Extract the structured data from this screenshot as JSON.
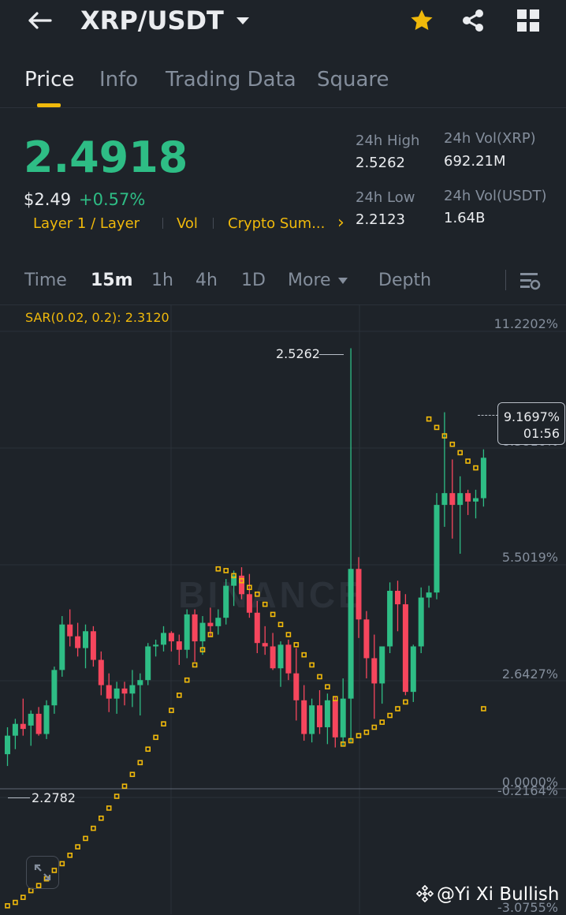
{
  "header": {
    "pair": "XRP/USDT",
    "back_icon": "arrow-left-icon",
    "dropdown_icon": "caret-down-icon",
    "star_icon": "star-icon",
    "share_icon": "share-icon",
    "grid_icon": "grid-icon"
  },
  "tabs": [
    {
      "label": "Price",
      "active": true
    },
    {
      "label": "Info"
    },
    {
      "label": "Trading Data"
    },
    {
      "label": "Square"
    }
  ],
  "price": {
    "last": "2.4918",
    "usd": "$2.49",
    "change": "+0.57%"
  },
  "tags": [
    "Layer 1 / Layer",
    "Vol",
    "Crypto Sum...",
    "›"
  ],
  "stats": {
    "high_label": "24h High",
    "high_value": "2.5262",
    "low_label": "24h Low",
    "low_value": "2.2123",
    "volxrp_label": "24h Vol(XRP)",
    "volxrp_value": "692.21M",
    "volusdt_label": "24h Vol(USDT)",
    "volusdt_value": "1.64B"
  },
  "timeframes": {
    "time": "Time",
    "m15": "15m",
    "h1": "1h",
    "h4": "4h",
    "d1": "1D",
    "more": "More",
    "depth": "Depth"
  },
  "indicator": "SAR(0.02, 0.2): 2.3120",
  "axis": [
    "11.2202%",
    "8.3816%",
    "5.5019%",
    "2.6427%",
    "0.0000%",
    "-0.2164%",
    "-3.0755%"
  ],
  "current_tag": {
    "pct": "9.1697%",
    "countdown": "01:56"
  },
  "annotations": {
    "high": "2.5262",
    "low": "2.2782"
  },
  "watermark": "BINANCE",
  "credit": "@Yi Xi Bullish",
  "colors": {
    "up": "#2ebd85",
    "down": "#f6465d",
    "accent": "#f0b90b",
    "bg": "#1e2329"
  },
  "chart_data": {
    "type": "candlestick",
    "candles": [
      {
        "o": 2.285,
        "h": 2.301,
        "l": 2.278,
        "c": 2.296
      },
      {
        "o": 2.296,
        "h": 2.306,
        "l": 2.288,
        "c": 2.303
      },
      {
        "o": 2.303,
        "h": 2.318,
        "l": 2.296,
        "c": 2.3
      },
      {
        "o": 2.302,
        "h": 2.311,
        "l": 2.29,
        "c": 2.309
      },
      {
        "o": 2.309,
        "h": 2.313,
        "l": 2.296,
        "c": 2.297
      },
      {
        "o": 2.297,
        "h": 2.317,
        "l": 2.294,
        "c": 2.314
      },
      {
        "o": 2.314,
        "h": 2.337,
        "l": 2.309,
        "c": 2.335
      },
      {
        "o": 2.335,
        "h": 2.367,
        "l": 2.331,
        "c": 2.362
      },
      {
        "o": 2.362,
        "h": 2.371,
        "l": 2.349,
        "c": 2.355
      },
      {
        "o": 2.355,
        "h": 2.363,
        "l": 2.343,
        "c": 2.348
      },
      {
        "o": 2.348,
        "h": 2.362,
        "l": 2.336,
        "c": 2.358
      },
      {
        "o": 2.358,
        "h": 2.361,
        "l": 2.337,
        "c": 2.341
      },
      {
        "o": 2.341,
        "h": 2.346,
        "l": 2.32,
        "c": 2.326
      },
      {
        "o": 2.326,
        "h": 2.333,
        "l": 2.31,
        "c": 2.318
      },
      {
        "o": 2.318,
        "h": 2.328,
        "l": 2.309,
        "c": 2.324
      },
      {
        "o": 2.324,
        "h": 2.328,
        "l": 2.314,
        "c": 2.321
      },
      {
        "o": 2.321,
        "h": 2.335,
        "l": 2.313,
        "c": 2.326
      },
      {
        "o": 2.326,
        "h": 2.333,
        "l": 2.308,
        "c": 2.329
      },
      {
        "o": 2.329,
        "h": 2.351,
        "l": 2.326,
        "c": 2.349
      },
      {
        "o": 2.349,
        "h": 2.353,
        "l": 2.343,
        "c": 2.35
      },
      {
        "o": 2.35,
        "h": 2.361,
        "l": 2.346,
        "c": 2.357
      },
      {
        "o": 2.357,
        "h": 2.358,
        "l": 2.346,
        "c": 2.352
      },
      {
        "o": 2.352,
        "h": 2.356,
        "l": 2.338,
        "c": 2.347
      },
      {
        "o": 2.347,
        "h": 2.371,
        "l": 2.342,
        "c": 2.368
      },
      {
        "o": 2.368,
        "h": 2.371,
        "l": 2.34,
        "c": 2.352
      },
      {
        "o": 2.352,
        "h": 2.367,
        "l": 2.344,
        "c": 2.363
      },
      {
        "o": 2.363,
        "h": 2.372,
        "l": 2.355,
        "c": 2.361
      },
      {
        "o": 2.361,
        "h": 2.371,
        "l": 2.356,
        "c": 2.366
      },
      {
        "o": 2.366,
        "h": 2.389,
        "l": 2.362,
        "c": 2.385
      },
      {
        "o": 2.385,
        "h": 2.394,
        "l": 2.373,
        "c": 2.391
      },
      {
        "o": 2.391,
        "h": 2.396,
        "l": 2.377,
        "c": 2.38
      },
      {
        "o": 2.38,
        "h": 2.392,
        "l": 2.366,
        "c": 2.369
      },
      {
        "o": 2.369,
        "h": 2.376,
        "l": 2.345,
        "c": 2.351
      },
      {
        "o": 2.351,
        "h": 2.361,
        "l": 2.344,
        "c": 2.349
      },
      {
        "o": 2.349,
        "h": 2.357,
        "l": 2.335,
        "c": 2.336
      },
      {
        "o": 2.336,
        "h": 2.352,
        "l": 2.325,
        "c": 2.35
      },
      {
        "o": 2.35,
        "h": 2.353,
        "l": 2.329,
        "c": 2.333
      },
      {
        "o": 2.333,
        "h": 2.348,
        "l": 2.305,
        "c": 2.317
      },
      {
        "o": 2.317,
        "h": 2.326,
        "l": 2.293,
        "c": 2.297
      },
      {
        "o": 2.297,
        "h": 2.318,
        "l": 2.292,
        "c": 2.314
      },
      {
        "o": 2.314,
        "h": 2.323,
        "l": 2.297,
        "c": 2.301
      },
      {
        "o": 2.301,
        "h": 2.321,
        "l": 2.291,
        "c": 2.317
      },
      {
        "o": 2.317,
        "h": 2.319,
        "l": 2.289,
        "c": 2.295
      },
      {
        "o": 2.295,
        "h": 2.33,
        "l": 2.29,
        "c": 2.318
      },
      {
        "o": 2.318,
        "h": 2.526,
        "l": 2.292,
        "c": 2.395
      },
      {
        "o": 2.395,
        "h": 2.402,
        "l": 2.354,
        "c": 2.365
      },
      {
        "o": 2.365,
        "h": 2.37,
        "l": 2.33,
        "c": 2.342
      },
      {
        "o": 2.342,
        "h": 2.356,
        "l": 2.306,
        "c": 2.327
      },
      {
        "o": 2.327,
        "h": 2.348,
        "l": 2.315,
        "c": 2.349
      },
      {
        "o": 2.349,
        "h": 2.387,
        "l": 2.345,
        "c": 2.382
      },
      {
        "o": 2.382,
        "h": 2.388,
        "l": 2.358,
        "c": 2.374
      },
      {
        "o": 2.374,
        "h": 2.38,
        "l": 2.32,
        "c": 2.322
      },
      {
        "o": 2.322,
        "h": 2.35,
        "l": 2.316,
        "c": 2.349
      },
      {
        "o": 2.349,
        "h": 2.384,
        "l": 2.345,
        "c": 2.378
      },
      {
        "o": 2.378,
        "h": 2.385,
        "l": 2.372,
        "c": 2.381
      },
      {
        "o": 2.381,
        "h": 2.44,
        "l": 2.377,
        "c": 2.433
      },
      {
        "o": 2.433,
        "h": 2.488,
        "l": 2.42,
        "c": 2.44
      },
      {
        "o": 2.44,
        "h": 2.46,
        "l": 2.413,
        "c": 2.433
      },
      {
        "o": 2.433,
        "h": 2.45,
        "l": 2.404,
        "c": 2.44
      },
      {
        "o": 2.44,
        "h": 2.442,
        "l": 2.427,
        "c": 2.435
      },
      {
        "o": 2.435,
        "h": 2.442,
        "l": 2.425,
        "c": 2.437
      },
      {
        "o": 2.437,
        "h": 2.466,
        "l": 2.432,
        "c": 2.461
      }
    ],
    "sar": [
      2.195,
      2.197,
      2.2,
      2.204,
      2.207,
      2.211,
      2.216,
      2.22,
      2.225,
      2.23,
      2.235,
      2.241,
      2.247,
      2.253,
      2.26,
      2.266,
      2.273,
      2.28,
      2.288,
      2.295,
      2.303,
      2.311,
      2.32,
      2.329,
      2.338,
      2.347,
      2.356,
      2.395,
      2.394,
      2.391,
      2.388,
      2.384,
      2.38,
      2.374,
      2.368,
      2.362,
      2.356,
      2.35,
      2.344,
      2.338,
      2.331,
      2.325,
      2.318,
      2.291,
      2.293,
      2.296,
      2.298,
      2.301,
      2.304,
      2.308,
      2.312,
      2.316,
      null,
      null,
      2.484,
      2.479,
      2.474,
      2.469,
      2.464,
      2.459,
      2.455,
      2.312
    ],
    "ylim": [
      2.19,
      2.552
    ]
  }
}
